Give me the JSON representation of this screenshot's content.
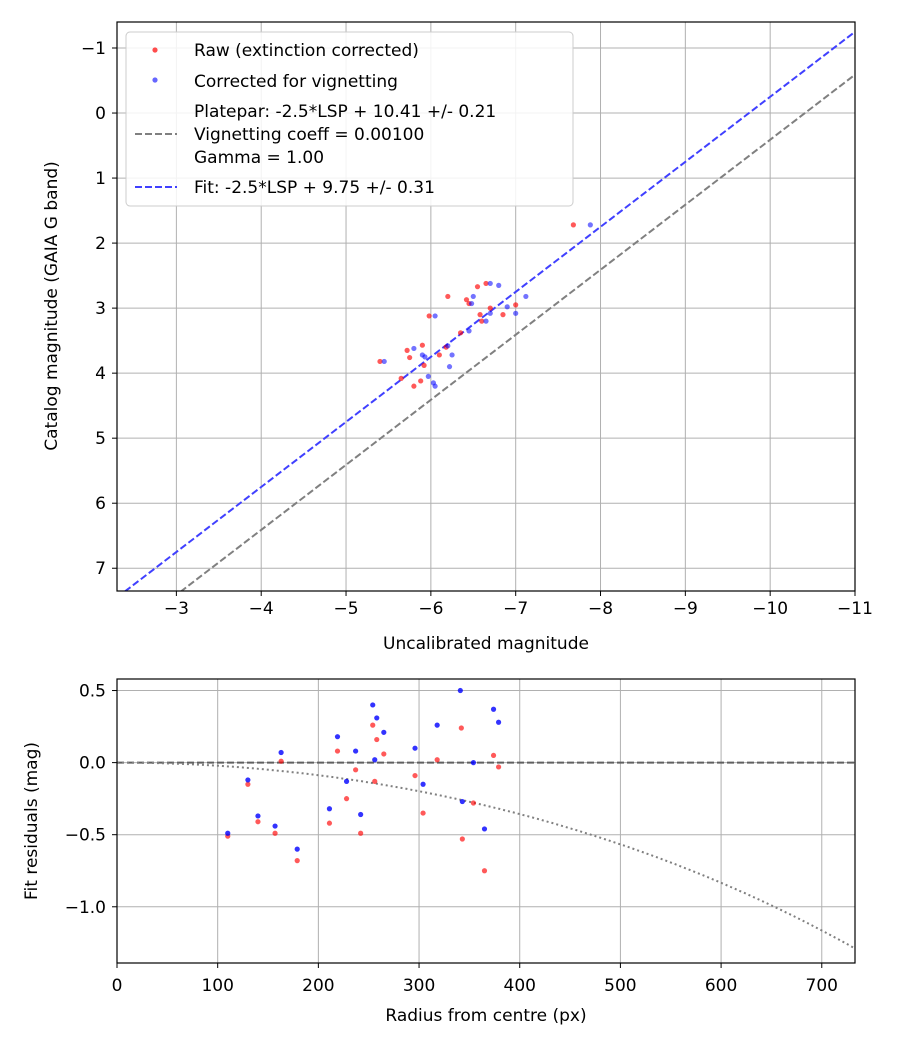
{
  "colors": {
    "raw": "#ff0000",
    "corrected": "#0000ff",
    "platepar_line": "#808080",
    "fit_line": "#4040ff",
    "grid": "#b0b0b0"
  },
  "chart_data": [
    {
      "type": "scatter",
      "xlabel": "Uncalibrated magnitude",
      "ylabel": "Catalog magnitude (GAIA G band)",
      "xlim": [
        -2.3,
        -11
      ],
      "ylim": [
        7.35,
        -1.4
      ],
      "x_ticks": [
        -3,
        -4,
        -5,
        -6,
        -7,
        -8,
        -9,
        -10,
        -11
      ],
      "x_tick_labels": [
        "−3",
        "−4",
        "−5",
        "−6",
        "−7",
        "−8",
        "−9",
        "−10",
        "−11"
      ],
      "y_ticks": [
        -1,
        0,
        1,
        2,
        3,
        4,
        5,
        6,
        7
      ],
      "y_tick_labels": [
        "−1",
        "0",
        "1",
        "2",
        "3",
        "4",
        "5",
        "6",
        "7"
      ],
      "grid": true,
      "legend_position": "top-left",
      "legend": [
        {
          "label": "Raw (extinction corrected)",
          "marker": "dot",
          "color": "#ff0000"
        },
        {
          "label": "Corrected for vignetting",
          "marker": "dot",
          "color": "#0000ff"
        },
        {
          "label": "Platepar: -2.5*LSP + 10.41 +/- 0.21",
          "label2": "Vignetting coeff = 0.00100",
          "label3": "Gamma = 1.00",
          "marker": "dashed",
          "color": "#808080"
        },
        {
          "label": "Fit: -2.5*LSP + 9.75 +/- 0.31",
          "marker": "dashed",
          "color": "#4040ff"
        }
      ],
      "lines": [
        {
          "name": "Platepar",
          "intercept": 10.41,
          "slope": 1.0,
          "color": "#808080"
        },
        {
          "name": "Fit",
          "intercept": 9.75,
          "slope": 1.0,
          "color": "#4040ff"
        }
      ],
      "series": [
        {
          "name": "Raw (extinction corrected)",
          "color": "#ff0000",
          "points": [
            [
              -7.68,
              1.72
            ],
            [
              -6.55,
              2.67
            ],
            [
              -6.65,
              2.62
            ],
            [
              -6.2,
              2.82
            ],
            [
              -6.42,
              2.87
            ],
            [
              -6.45,
              2.93
            ],
            [
              -6.58,
              3.1
            ],
            [
              -6.6,
              3.2
            ],
            [
              -6.7,
              3.0
            ],
            [
              -6.85,
              3.1
            ],
            [
              -5.98,
              3.12
            ],
            [
              -6.35,
              3.38
            ],
            [
              -6.18,
              3.6
            ],
            [
              -5.4,
              3.82
            ],
            [
              -5.72,
              3.65
            ],
            [
              -5.9,
              3.57
            ],
            [
              -5.75,
              3.76
            ],
            [
              -6.1,
              3.72
            ],
            [
              -5.92,
              3.88
            ],
            [
              -5.65,
              4.08
            ],
            [
              -5.88,
              4.12
            ],
            [
              -5.8,
              4.2
            ],
            [
              -7.0,
              2.95
            ]
          ]
        },
        {
          "name": "Corrected for vignetting",
          "color": "#0000ff",
          "points": [
            [
              -7.88,
              1.72
            ],
            [
              -6.7,
              2.62
            ],
            [
              -6.8,
              2.65
            ],
            [
              -6.5,
              2.82
            ],
            [
              -6.48,
              2.93
            ],
            [
              -7.12,
              2.82
            ],
            [
              -7.0,
              3.08
            ],
            [
              -6.7,
              3.08
            ],
            [
              -6.65,
              3.2
            ],
            [
              -6.05,
              3.12
            ],
            [
              -6.45,
              3.35
            ],
            [
              -6.2,
              3.58
            ],
            [
              -5.45,
              3.82
            ],
            [
              -5.8,
              3.62
            ],
            [
              -5.9,
              3.72
            ],
            [
              -5.93,
              3.75
            ],
            [
              -6.25,
              3.72
            ],
            [
              -6.22,
              3.9
            ],
            [
              -5.97,
              4.05
            ],
            [
              -6.03,
              4.15
            ],
            [
              -6.05,
              4.2
            ],
            [
              -6.9,
              2.98
            ]
          ]
        }
      ]
    },
    {
      "type": "scatter",
      "xlabel": "Radius from centre (px)",
      "ylabel": "Fit residuals (mag)",
      "xlim": [
        0,
        733
      ],
      "ylim": [
        -1.39,
        0.58
      ],
      "x_ticks": [
        0,
        100,
        200,
        300,
        400,
        500,
        600,
        700
      ],
      "x_tick_labels": [
        "0",
        "100",
        "200",
        "300",
        "400",
        "500",
        "600",
        "700"
      ],
      "y_ticks": [
        0.5,
        0.0,
        -0.5,
        -1.0
      ],
      "y_tick_labels": [
        "0.5",
        "0.0",
        "−0.5",
        "−1.0"
      ],
      "grid": true,
      "reference_line": {
        "y": 0.0,
        "style": "dashed",
        "color": "#606060"
      },
      "vignetting_curve": {
        "coeff": 0.001,
        "style": "dotted",
        "color": "#808080"
      },
      "series": [
        {
          "name": "Raw",
          "color": "#ff0000",
          "points": [
            [
              110,
              -0.51
            ],
            [
              130,
              -0.15
            ],
            [
              140,
              -0.41
            ],
            [
              157,
              -0.49
            ],
            [
              163,
              0.01
            ],
            [
              179,
              -0.68
            ],
            [
              211,
              -0.42
            ],
            [
              219,
              0.08
            ],
            [
              228,
              -0.25
            ],
            [
              237,
              -0.05
            ],
            [
              242,
              -0.49
            ],
            [
              254,
              0.26
            ],
            [
              256,
              -0.13
            ],
            [
              258,
              0.16
            ],
            [
              265,
              0.06
            ],
            [
              296,
              -0.09
            ],
            [
              304,
              -0.35
            ],
            [
              318,
              0.02
            ],
            [
              342,
              0.24
            ],
            [
              343,
              -0.53
            ],
            [
              354,
              -0.28
            ],
            [
              365,
              -0.75
            ],
            [
              374,
              0.05
            ],
            [
              379,
              -0.03
            ]
          ]
        },
        {
          "name": "Corrected",
          "color": "#0000ff",
          "points": [
            [
              110,
              -0.49
            ],
            [
              130,
              -0.12
            ],
            [
              140,
              -0.37
            ],
            [
              157,
              -0.44
            ],
            [
              163,
              0.07
            ],
            [
              179,
              -0.6
            ],
            [
              211,
              -0.32
            ],
            [
              219,
              0.18
            ],
            [
              228,
              -0.13
            ],
            [
              237,
              0.08
            ],
            [
              242,
              -0.36
            ],
            [
              254,
              0.4
            ],
            [
              256,
              0.02
            ],
            [
              258,
              0.31
            ],
            [
              265,
              0.21
            ],
            [
              296,
              0.1
            ],
            [
              304,
              -0.15
            ],
            [
              318,
              0.26
            ],
            [
              341,
              0.5
            ],
            [
              343,
              -0.27
            ],
            [
              354,
              0.0
            ],
            [
              365,
              -0.46
            ],
            [
              374,
              0.37
            ],
            [
              379,
              0.28
            ]
          ]
        }
      ]
    }
  ]
}
